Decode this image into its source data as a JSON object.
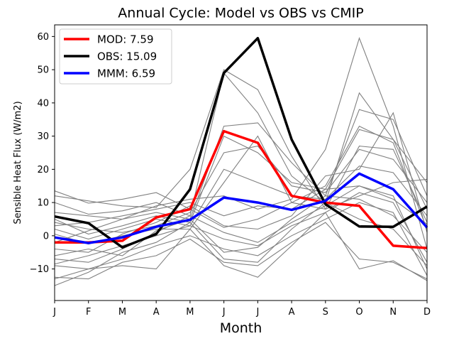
{
  "chart_data": {
    "type": "line",
    "title": "Annual Cycle: Model vs OBS vs CMIP",
    "xlabel": "Month",
    "ylabel": "Sensible Heat Flux (W/m2)",
    "categories": [
      "J",
      "F",
      "M",
      "A",
      "M",
      "J",
      "J",
      "A",
      "S",
      "O",
      "N",
      "D"
    ],
    "ylim": [
      -19.5,
      63.5
    ],
    "yticks": [
      -10,
      0,
      10,
      20,
      30,
      40,
      50,
      60
    ],
    "grid": false,
    "legend_position": "top-left",
    "series": [
      {
        "name": "MOD: 7.59",
        "color": "#ff0000",
        "values": [
          -2.0,
          -2.0,
          -1.5,
          5.5,
          8.0,
          31.5,
          28.0,
          12.0,
          10.0,
          9.0,
          -3.0,
          -3.7
        ]
      },
      {
        "name": "OBS: 15.09",
        "color": "#000000",
        "values": [
          5.8,
          3.8,
          -3.5,
          0.5,
          14.0,
          49.0,
          59.5,
          29.0,
          9.5,
          2.8,
          2.7,
          8.8
        ]
      },
      {
        "name": "MMM: 6.59",
        "color": "#0000ff",
        "values": [
          -0.5,
          -2.2,
          -0.5,
          2.7,
          4.8,
          11.5,
          10.0,
          7.8,
          10.5,
          18.7,
          14.0,
          2.5
        ]
      }
    ],
    "cmip_color": "#808080",
    "cmip_models": [
      [
        13.5,
        9.8,
        11.0,
        13.0,
        8.0,
        2.5,
        5.0,
        10.0,
        15.0,
        33.0,
        28.0,
        2.0
      ],
      [
        12.0,
        10.5,
        9.0,
        8.5,
        20.0,
        50.0,
        44.0,
        24.0,
        8.0,
        12.0,
        16.0,
        17.0
      ],
      [
        10.0,
        6.5,
        7.5,
        10.0,
        6.0,
        49.0,
        37.0,
        18.0,
        10.0,
        43.0,
        29.0,
        16.0
      ],
      [
        7.0,
        6.0,
        5.0,
        7.0,
        5.0,
        33.0,
        34.0,
        22.0,
        12.0,
        38.0,
        35.0,
        12.0
      ],
      [
        5.0,
        0.5,
        3.0,
        6.0,
        4.0,
        30.0,
        25.0,
        16.0,
        14.0,
        32.0,
        29.0,
        8.0
      ],
      [
        4.0,
        2.0,
        1.0,
        3.0,
        7.0,
        25.0,
        27.0,
        15.0,
        13.0,
        26.0,
        23.0,
        10.0
      ],
      [
        2.0,
        -1.0,
        2.0,
        5.0,
        3.0,
        20.0,
        16.0,
        12.0,
        11.0,
        21.0,
        19.0,
        6.0
      ],
      [
        0.5,
        -2.5,
        0.0,
        2.0,
        2.0,
        16.0,
        30.0,
        10.0,
        8.0,
        27.0,
        26.0,
        4.0
      ],
      [
        -2.0,
        1.5,
        5.0,
        9.0,
        11.0,
        12.0,
        8.0,
        11.0,
        26.0,
        59.5,
        33.0,
        -4.0
      ],
      [
        -4.0,
        -5.0,
        0.5,
        4.0,
        9.0,
        3.0,
        2.0,
        6.0,
        18.0,
        20.0,
        37.0,
        1.0
      ],
      [
        -7.0,
        -8.0,
        -4.0,
        1.0,
        6.0,
        1.0,
        -2.0,
        4.0,
        9.0,
        15.0,
        12.0,
        -10.0
      ],
      [
        -8.5,
        -6.0,
        -3.0,
        0.0,
        3.0,
        -1.0,
        -3.0,
        3.0,
        7.0,
        13.0,
        10.0,
        -8.0
      ],
      [
        -9.0,
        -10.0,
        -7.0,
        -3.0,
        0.0,
        -4.0,
        -6.0,
        0.0,
        5.0,
        10.0,
        7.0,
        -12.0
      ],
      [
        -12.5,
        -13.0,
        -8.0,
        -6.0,
        -1.0,
        -8.0,
        -9.0,
        -2.0,
        4.0,
        -7.0,
        -8.0,
        -13.0
      ],
      [
        -13.0,
        -10.0,
        -9.0,
        -10.0,
        2.0,
        -9.0,
        -12.5,
        -3.0,
        7.0,
        -10.0,
        -7.5,
        -13.5
      ],
      [
        -15.0,
        -11.0,
        -5.0,
        -2.0,
        4.0,
        -7.0,
        -8.0,
        2.0,
        10.0,
        5.0,
        2.0,
        -9.0
      ],
      [
        -6.0,
        -4.0,
        -6.0,
        1.5,
        5.0,
        -5.0,
        -3.5,
        5.0,
        12.0,
        11.0,
        6.0,
        -5.0
      ],
      [
        3.0,
        4.0,
        6.0,
        8.0,
        10.0,
        6.0,
        9.0,
        8.0,
        14.0,
        15.0,
        11.0,
        3.5
      ]
    ]
  }
}
